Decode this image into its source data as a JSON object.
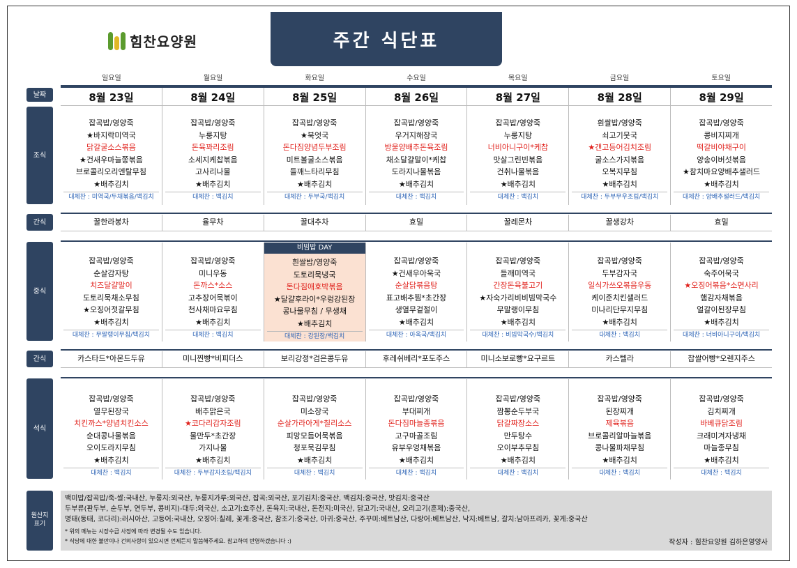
{
  "logo_text": "힘찬요양원",
  "title": "주간 식단표",
  "days": [
    "일요일",
    "월요일",
    "화요일",
    "수요일",
    "목요일",
    "금요일",
    "토요일"
  ],
  "labels": {
    "date": "날짜",
    "breakfast": "조식",
    "snack1": "간식",
    "lunch": "중식",
    "snack2": "간식",
    "dinner": "석식",
    "origin": "원산지\n표기"
  },
  "dates": [
    "8월 23일",
    "8월 24일",
    "8월 25일",
    "8월 26일",
    "8월 27일",
    "8월 28일",
    "8월 29일"
  ],
  "breakfast": [
    {
      "items": [
        {
          "t": "잡곡밥/영양죽"
        },
        {
          "t": "★바지락미역국",
          "s": 1
        },
        {
          "t": "닭갈굴소스볶음",
          "c": "red"
        },
        {
          "t": "★건새우마늘쫑볶음",
          "s": 1
        },
        {
          "t": "브로콜리오리엔탈무침"
        },
        {
          "t": "★배추김치",
          "s": 1
        }
      ],
      "alt": "대체찬 : 미역국/두채볶음/백김치"
    },
    {
      "items": [
        {
          "t": "잡곡밥/영양죽"
        },
        {
          "t": "누룽지탕"
        },
        {
          "t": "돈육꽈리조림",
          "c": "red"
        },
        {
          "t": "소세지케찹볶음"
        },
        {
          "t": "고사리나물"
        },
        {
          "t": "★배추김치",
          "s": 1
        }
      ],
      "alt": "대체찬 : 백김치"
    },
    {
      "items": [
        {
          "t": "잡곡밥/영양죽"
        },
        {
          "t": "★북엇국",
          "s": 1
        },
        {
          "t": "돈다짐양념두부조림",
          "c": "red"
        },
        {
          "t": "미트볼굴소스볶음"
        },
        {
          "t": "들깨느타리무침"
        },
        {
          "t": "★배추김치",
          "s": 1
        }
      ],
      "alt": "대체찬 : 두부국/백김치"
    },
    {
      "items": [
        {
          "t": "잡곡밥/영양죽"
        },
        {
          "t": "우거지해장국"
        },
        {
          "t": "방울양배추돈육조림",
          "c": "red"
        },
        {
          "t": "채소달걀말이*케찹"
        },
        {
          "t": "도라지나물볶음"
        },
        {
          "t": "★배추김치",
          "s": 1
        }
      ],
      "alt": "대체찬 : 백김치"
    },
    {
      "items": [
        {
          "t": "잡곡밥/영양죽"
        },
        {
          "t": "누룽지탕"
        },
        {
          "t": "너비아니구이*케찹",
          "c": "red"
        },
        {
          "t": "맛살그린빈볶음"
        },
        {
          "t": "건취나물볶음"
        },
        {
          "t": "★배추김치",
          "s": 1
        }
      ],
      "alt": "대체찬 : 백김치"
    },
    {
      "items": [
        {
          "t": "흰쌀밥/영양죽"
        },
        {
          "t": "쇠고기뭇국"
        },
        {
          "t": "★갠고등어김치조림",
          "s": 1,
          "c": "red"
        },
        {
          "t": "굴소스가지볶음"
        },
        {
          "t": "오복지무침"
        },
        {
          "t": "★배추김치",
          "s": 1
        }
      ],
      "alt": "대체찬 : 두부무우조림/백김치"
    },
    {
      "items": [
        {
          "t": "잡곡밥/영양죽"
        },
        {
          "t": "콩비지찌개"
        },
        {
          "t": "떡갈비야채구이",
          "c": "red"
        },
        {
          "t": "양송이버섯볶음"
        },
        {
          "t": "★참치마요양배추샐러드",
          "s": 1
        },
        {
          "t": "★배추김치",
          "s": 1
        }
      ],
      "alt": "대체찬 : 양배추샐러드/백김치"
    }
  ],
  "snack1": [
    "꿀한라봉차",
    "율무차",
    "꿀대추차",
    "효밀",
    "꿀레몬차",
    "꿀생강차",
    "효밀"
  ],
  "lunch_banner": "비빔밥 DAY",
  "lunch": [
    {
      "items": [
        {
          "t": "잡곡밥/영양죽"
        },
        {
          "t": "순살감자탕"
        },
        {
          "t": "치즈달걀말이",
          "c": "red"
        },
        {
          "t": "도토리묵채소무침"
        },
        {
          "t": "★오징어젓갈무침",
          "s": 1
        },
        {
          "t": "★배추김치",
          "s": 1
        }
      ],
      "alt": "대체찬 : 무말랭이무침/백김치"
    },
    {
      "items": [
        {
          "t": "잡곡밥/영양죽"
        },
        {
          "t": "미니우동"
        },
        {
          "t": "돈까스*소스",
          "c": "red"
        },
        {
          "t": "고추장어묵볶이"
        },
        {
          "t": "천사채마요무침"
        },
        {
          "t": "★배추김치",
          "s": 1
        }
      ],
      "alt": "대체찬 : 백김치"
    },
    {
      "items": [
        {
          "t": "흰쌀밥/영양죽"
        },
        {
          "t": "도토리묵냉국"
        },
        {
          "t": "돈다짐애호박볶음",
          "c": "red"
        },
        {
          "t": "★달걀후라이*우렁강된장",
          "s": 1
        },
        {
          "t": "콩나물무침 / 무생채"
        },
        {
          "t": "★배추김치",
          "s": 1
        }
      ],
      "alt": "대체찬 : 강된장/백김치"
    },
    {
      "items": [
        {
          "t": "잡곡밥/영양죽"
        },
        {
          "t": "★건새우아욱국",
          "s": 1
        },
        {
          "t": "순살닭볶음탕",
          "c": "red"
        },
        {
          "t": "표고배추찜*초간장"
        },
        {
          "t": "생열무겉절이"
        },
        {
          "t": "★배추김치",
          "s": 1
        }
      ],
      "alt": "대체찬 : 아욱국/백김치"
    },
    {
      "items": [
        {
          "t": "잡곡밥/영양죽"
        },
        {
          "t": "들깨미역국"
        },
        {
          "t": "간장돈육불고기",
          "c": "red"
        },
        {
          "t": "★자숙가리비비빔막국수",
          "s": 1
        },
        {
          "t": "무말랭이무침"
        },
        {
          "t": "★배추김치",
          "s": 1
        }
      ],
      "alt": "대체찬 : 비빔막국수/백김치"
    },
    {
      "items": [
        {
          "t": "잡곡밥/영양죽"
        },
        {
          "t": "두부감자국"
        },
        {
          "t": "일식가쓰오볶음우동",
          "c": "red"
        },
        {
          "t": "케이준치킨샐러드"
        },
        {
          "t": "미나리단무지무침"
        },
        {
          "t": "★배추김치",
          "s": 1
        }
      ],
      "alt": "대체찬 : 백김치"
    },
    {
      "items": [
        {
          "t": "잡곡밥/영양죽"
        },
        {
          "t": "숙주어묵국"
        },
        {
          "t": "★오징어볶음*소면사리",
          "s": 1,
          "c": "red"
        },
        {
          "t": "햄감자채볶음"
        },
        {
          "t": "얼갈이된장무침"
        },
        {
          "t": "★배추김치",
          "s": 1
        }
      ],
      "alt": "대체찬 : 너비아니구이/백김치"
    }
  ],
  "snack2": [
    "카스타드*아몬드두유",
    "미니찐빵*비피더스",
    "보리강정*검은콩두유",
    "후레쉬베리*포도주스",
    "미니소보로빵*요구르트",
    "카스텔라",
    "찹쌀어빵*오렌지주스"
  ],
  "dinner": [
    {
      "items": [
        {
          "t": "잡곡밥/영양죽"
        },
        {
          "t": "열무된장국"
        },
        {
          "t": "치킨까스*양념치킨소스",
          "c": "red"
        },
        {
          "t": "순대콩나물볶음"
        },
        {
          "t": "오이도라지무침"
        },
        {
          "t": "★배추김치",
          "s": 1
        }
      ],
      "alt": "대체찬 : 백김치"
    },
    {
      "items": [
        {
          "t": "잡곡밥/영양죽"
        },
        {
          "t": "배추맑은국"
        },
        {
          "t": "★코다리감자조림",
          "s": 1,
          "c": "red"
        },
        {
          "t": "물만두*초간장"
        },
        {
          "t": "가지나물"
        },
        {
          "t": "★배추김치",
          "s": 1
        }
      ],
      "alt": "대체찬 : 두부감자조림/백김치"
    },
    {
      "items": [
        {
          "t": "잡곡밥/영양죽"
        },
        {
          "t": "미소장국"
        },
        {
          "t": "순살가라아게*칠리소스",
          "c": "red"
        },
        {
          "t": "피망모듬어묵볶음"
        },
        {
          "t": "청포묵김무침"
        },
        {
          "t": "★배추김치",
          "s": 1
        }
      ],
      "alt": "대체찬 : 백김치"
    },
    {
      "items": [
        {
          "t": "잡곡밥/영양죽"
        },
        {
          "t": "부대찌개"
        },
        {
          "t": "돈다짐마늘종볶음",
          "c": "red"
        },
        {
          "t": "고구마골조림"
        },
        {
          "t": "유부우엉채볶음"
        },
        {
          "t": "★배추김치",
          "s": 1
        }
      ],
      "alt": "대체찬 : 백김치"
    },
    {
      "items": [
        {
          "t": "잡곡밥/영양죽"
        },
        {
          "t": "짬뽕순두부국"
        },
        {
          "t": "닭갈짜장소스",
          "c": "red"
        },
        {
          "t": "만두탕수"
        },
        {
          "t": "오이부추무침"
        },
        {
          "t": "★배추김치",
          "s": 1
        }
      ],
      "alt": "대체찬 : 백김치"
    },
    {
      "items": [
        {
          "t": "잡곡밥/영양죽"
        },
        {
          "t": "된장찌개"
        },
        {
          "t": "제육볶음",
          "c": "red"
        },
        {
          "t": "브로콜리알마늘볶음"
        },
        {
          "t": "콩나물파채무침"
        },
        {
          "t": "★배추김치",
          "s": 1
        }
      ],
      "alt": "대체찬 : 백김치"
    },
    {
      "items": [
        {
          "t": "잡곡밥/영양죽"
        },
        {
          "t": "김치찌개"
        },
        {
          "t": "바베큐닭조림",
          "c": "red"
        },
        {
          "t": "크래미겨자냉채"
        },
        {
          "t": "마늘종무침"
        },
        {
          "t": "★배추김치",
          "s": 1
        }
      ],
      "alt": "대체찬 : 백김치"
    }
  ],
  "origin": {
    "lines": [
      "백미밥/잡곡밥/죽-쌀:국내산, 누룽지:외국산, 누룽지가루:외국산, 잡곡:외국산, 포기김치:중국산, 백김치:중국산, 맛김치:중국산",
      "두부류(판두부, 순두부, 연두부, 콩비지)-대두:외국산, 소고기:호주산, 돈육지:국내산, 돈전지:미국산, 닭고기:국내산, 오리고기(훈제):중국산,",
      "명태(동태, 코다리):러시아산, 고등어:국내산, 오징어:칠레, 꽃게:중국산, 참조기:중국산, 아귀:중국산, 주꾸미:베트남산, 다랑어:베트남산, 낙지:베트남, 갈치:남아프리카, 꽃게:중국산"
    ],
    "notes": [
      "* 위의 메뉴는 시장수급 사정에 따라 변경될 수도 있습니다.",
      "* 식당에 대한 불만이나 건의사항이 있으시면 언제든지 말씀해주세요. 참고하여 반영하겠습니다 :)"
    ],
    "author": "작성자 : 힘찬요양원 김하은영양사"
  }
}
